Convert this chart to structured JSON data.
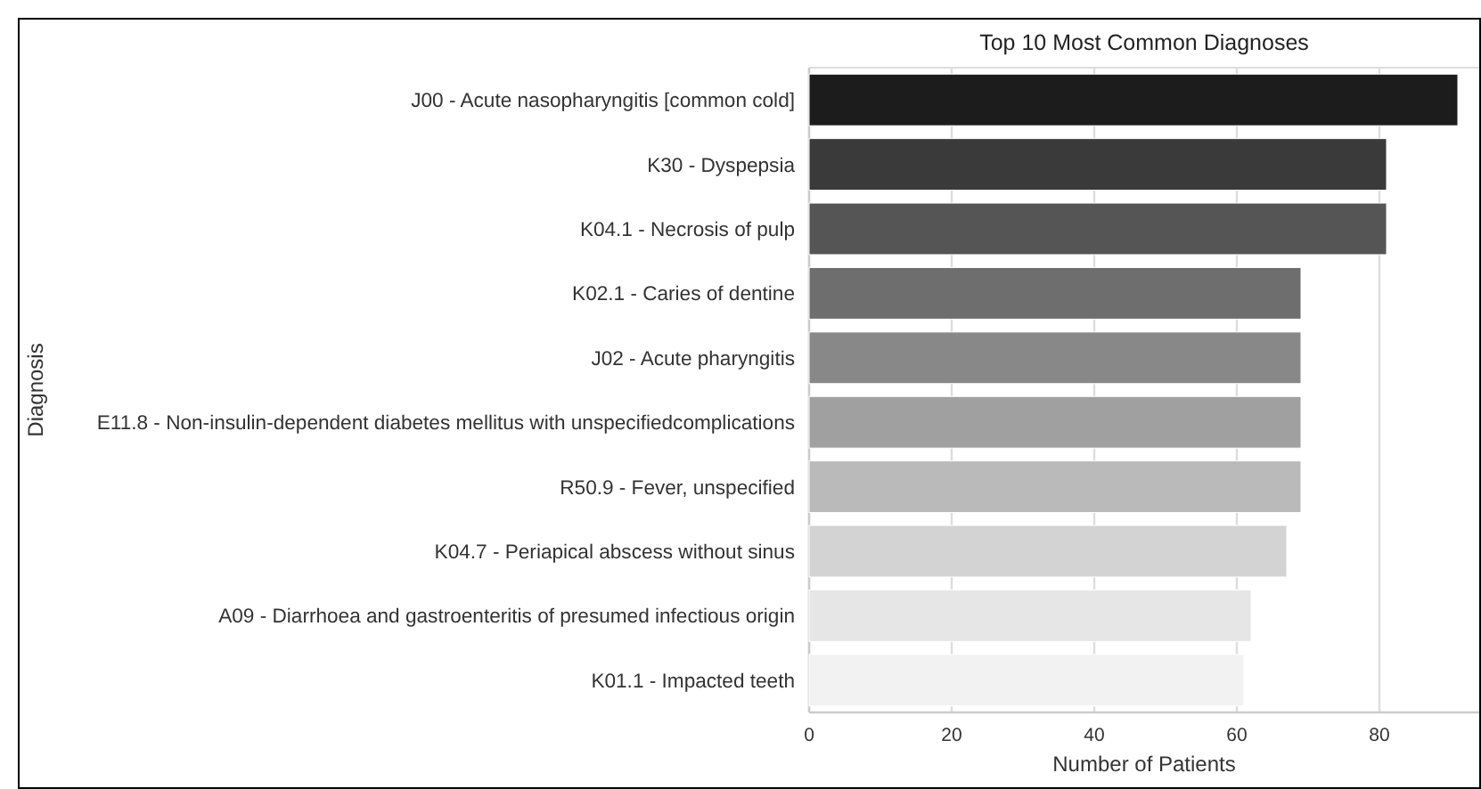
{
  "chart_data": {
    "type": "bar",
    "orientation": "horizontal",
    "title": "Top 10 Most Common Diagnoses",
    "xlabel": "Number of Patients",
    "ylabel": "Diagnosis",
    "categories": [
      "J00 - Acute nasopharyngitis [common cold]",
      "K30 - Dyspepsia",
      "K04.1 - Necrosis of pulp",
      "K02.1 - Caries of dentine",
      "J02 - Acute pharyngitis",
      "E11.8 - Non-insulin-dependent diabetes mellitus with unspecifiedcomplications",
      "R50.9 - Fever, unspecified",
      "K04.7 - Periapical abscess without sinus",
      "A09 - Diarrhoea and gastroenteritis of presumed infectious origin",
      "K01.1 - Impacted teeth"
    ],
    "values": [
      91,
      81,
      81,
      69,
      69,
      69,
      69,
      67,
      62,
      61
    ],
    "colors": [
      "#1c1c1c",
      "#3a3a3a",
      "#555555",
      "#6e6e6e",
      "#888888",
      "#a0a0a0",
      "#bababa",
      "#d3d3d3",
      "#e6e6e6",
      "#f2f2f2"
    ],
    "xlim": [
      0,
      94
    ],
    "xticks": [
      0,
      20,
      40,
      60,
      80
    ],
    "grid": "x"
  }
}
